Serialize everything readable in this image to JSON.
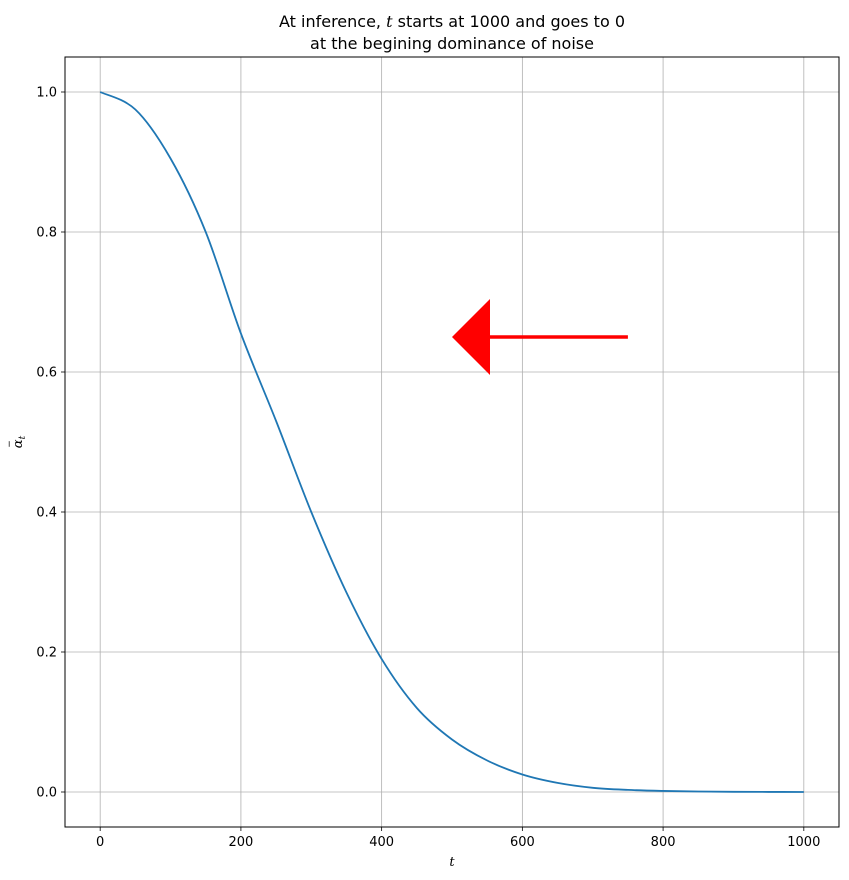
{
  "chart_data": {
    "type": "line",
    "title_line1_prefix": "At inference, ",
    "title_line1_var": "t",
    "title_line1_suffix": " starts at 1000 and goes to 0",
    "title_line2": "at the begining dominance of noise",
    "xlabel": "t",
    "ylabel_base": "α",
    "ylabel_sub": "t",
    "xlim": [
      -50,
      1050
    ],
    "ylim": [
      -0.05,
      1.05
    ],
    "xticks": [
      0,
      200,
      400,
      600,
      800,
      1000
    ],
    "yticks": [
      0.0,
      0.2,
      0.4,
      0.6,
      0.8,
      1.0
    ],
    "xtick_labels": [
      "0",
      "200",
      "400",
      "600",
      "800",
      "1000"
    ],
    "ytick_labels": [
      "0.0",
      "0.2",
      "0.4",
      "0.6",
      "0.8",
      "1.0"
    ],
    "grid": true,
    "series": [
      {
        "name": "alpha_bar",
        "color": "#1f77b4",
        "x": [
          0,
          50,
          100,
          150,
          200,
          250,
          300,
          350,
          400,
          450,
          500,
          550,
          600,
          650,
          700,
          750,
          800,
          850,
          900,
          950,
          1000
        ],
        "y": [
          1.0,
          0.975,
          0.905,
          0.8,
          0.655,
          0.53,
          0.4,
          0.285,
          0.19,
          0.12,
          0.075,
          0.045,
          0.025,
          0.013,
          0.006,
          0.003,
          0.0015,
          0.0007,
          0.0003,
          0.0001,
          0.0
        ]
      }
    ],
    "annotation": {
      "type": "arrow",
      "color": "#ff0000",
      "from": [
        750,
        0.65
      ],
      "to": [
        500,
        0.65
      ]
    }
  }
}
